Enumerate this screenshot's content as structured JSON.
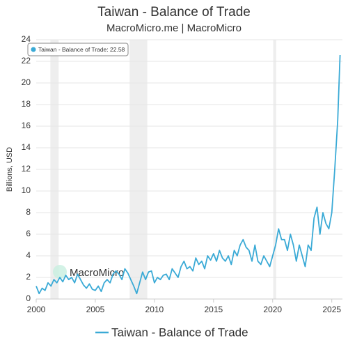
{
  "chart_data": {
    "type": "line",
    "title": "Taiwan - Balance of Trade",
    "subtitle": "MacroMicro.me | MacroMicro",
    "y_label": "Billions, USD",
    "watermark": "MacroMicro",
    "annotation": "Taiwan - Balance of Trade: 22.58",
    "x": [
      2000,
      2000.25,
      2000.5,
      2000.75,
      2001,
      2001.25,
      2001.5,
      2001.75,
      2002,
      2002.25,
      2002.5,
      2002.75,
      2003,
      2003.25,
      2003.5,
      2003.75,
      2004,
      2004.25,
      2004.5,
      2004.75,
      2005,
      2005.25,
      2005.5,
      2005.75,
      2006,
      2006.25,
      2006.5,
      2006.75,
      2007,
      2007.25,
      2007.5,
      2007.75,
      2008,
      2008.25,
      2008.5,
      2008.75,
      2009,
      2009.25,
      2009.5,
      2009.75,
      2010,
      2010.25,
      2010.5,
      2010.75,
      2011,
      2011.25,
      2011.5,
      2011.75,
      2012,
      2012.25,
      2012.5,
      2012.75,
      2013,
      2013.25,
      2013.5,
      2013.75,
      2014,
      2014.25,
      2014.5,
      2014.75,
      2015,
      2015.25,
      2015.5,
      2015.75,
      2016,
      2016.25,
      2016.5,
      2016.75,
      2017,
      2017.25,
      2017.5,
      2017.75,
      2018,
      2018.25,
      2018.5,
      2018.75,
      2019,
      2019.25,
      2019.5,
      2019.75,
      2020,
      2020.25,
      2020.5,
      2020.75,
      2021,
      2021.25,
      2021.5,
      2021.75,
      2022,
      2022.25,
      2022.5,
      2022.75,
      2023,
      2023.25,
      2023.5,
      2023.75,
      2024,
      2024.25,
      2024.5,
      2024.75,
      2025,
      2025.25,
      2025.5,
      2025.7
    ],
    "series": [
      {
        "name": "Taiwan - Balance of Trade",
        "color": "#3aaad6",
        "values": [
          1.2,
          0.5,
          1.0,
          0.8,
          1.5,
          1.2,
          1.8,
          1.5,
          2.0,
          1.6,
          2.2,
          1.8,
          2.0,
          1.5,
          2.3,
          1.8,
          1.3,
          1.0,
          1.4,
          0.9,
          0.8,
          1.2,
          0.7,
          1.5,
          1.8,
          1.5,
          2.3,
          2.6,
          2.3,
          1.8,
          2.8,
          2.4,
          1.8,
          1.2,
          0.5,
          1.5,
          2.5,
          1.8,
          2.5,
          2.6,
          1.5,
          2.0,
          1.8,
          2.2,
          2.3,
          1.8,
          2.8,
          2.4,
          2.0,
          3.0,
          3.5,
          2.8,
          3.0,
          2.6,
          3.8,
          3.2,
          3.5,
          2.8,
          4.0,
          3.6,
          4.2,
          3.5,
          4.5,
          3.8,
          3.5,
          4.0,
          3.2,
          4.5,
          4.0,
          5.0,
          5.5,
          4.8,
          4.5,
          3.5,
          5.0,
          3.5,
          3.2,
          4.0,
          3.5,
          3.0,
          4.0,
          5.0,
          6.5,
          5.5,
          5.5,
          4.5,
          6.0,
          5.0,
          3.5,
          5.0,
          4.0,
          3.0,
          5.0,
          4.5,
          7.5,
          8.5,
          6.0,
          8.0,
          7.0,
          6.5,
          8.0,
          12.0,
          16.5,
          22.58
        ]
      }
    ],
    "xlim": [
      2000,
      2025.9
    ],
    "ylim": [
      0,
      24
    ],
    "xticks": [
      2000,
      2005,
      2010,
      2015,
      2020,
      2025
    ],
    "yticks": [
      0,
      2,
      4,
      6,
      8,
      10,
      12,
      14,
      16,
      18,
      20,
      22,
      24
    ],
    "grid": true,
    "shaded_periods": [
      [
        2001.2,
        2001.9
      ],
      [
        2007.9,
        2009.4
      ],
      [
        2020.05,
        2020.3
      ]
    ],
    "shade_color": "#eeeeee",
    "legend": "bottom"
  }
}
